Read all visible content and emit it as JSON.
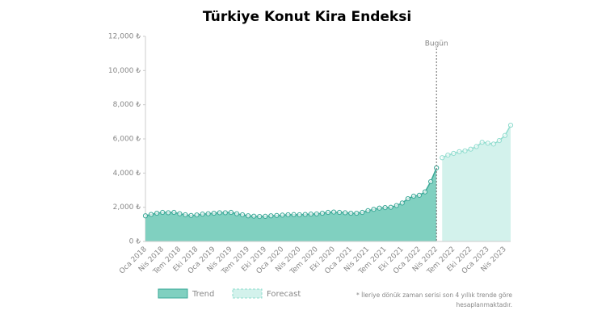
{
  "chart_data": {
    "type": "area",
    "title": "Türkiye Konut Kira Endeksi",
    "categories": [
      "Oca 2018",
      null,
      null,
      "Nis 2018",
      null,
      null,
      "Tem 2018",
      null,
      null,
      "Eki 2018",
      null,
      null,
      "Oca 2019",
      null,
      null,
      "Nis 2019",
      null,
      null,
      "Tem 2019",
      null,
      null,
      "Eki 2019",
      null,
      null,
      "Oca 2020",
      null,
      null,
      "Nis 2020",
      null,
      null,
      "Tem 2020",
      null,
      null,
      "Eki 2020",
      null,
      null,
      "Oca 2021",
      null,
      null,
      "Nis 2021",
      null,
      null,
      "Tem 2021",
      null,
      null,
      "Eki 2021",
      null,
      null,
      "Oca 2022",
      null,
      null,
      "Nis 2022",
      null,
      null,
      "Tem 2022",
      null,
      null,
      "Eki 2022",
      null,
      null,
      "Oca 2023",
      null,
      null,
      "Nis 2023",
      null
    ],
    "series": [
      {
        "name": "Trend",
        "color": "#3aa897",
        "fill": "#80d0c0",
        "values": [
          1500,
          1580,
          1650,
          1700,
          1680,
          1700,
          1620,
          1560,
          1520,
          1550,
          1600,
          1620,
          1650,
          1680,
          1680,
          1700,
          1620,
          1560,
          1500,
          1480,
          1460,
          1470,
          1500,
          1520,
          1540,
          1560,
          1570,
          1560,
          1580,
          1600,
          1610,
          1650,
          1700,
          1720,
          1700,
          1680,
          1650,
          1650,
          1700,
          1800,
          1880,
          1950,
          1980,
          2000,
          2100,
          2250,
          2500,
          2650,
          2700,
          2900,
          3500,
          4300,
          null,
          null,
          null,
          null,
          null,
          null,
          null,
          null,
          null,
          null,
          null,
          null,
          null
        ]
      },
      {
        "name": "Forecast",
        "color": "#8fdcce",
        "fill": "#d3f2ec",
        "values": [
          null,
          null,
          null,
          null,
          null,
          null,
          null,
          null,
          null,
          null,
          null,
          null,
          null,
          null,
          null,
          null,
          null,
          null,
          null,
          null,
          null,
          null,
          null,
          null,
          null,
          null,
          null,
          null,
          null,
          null,
          null,
          null,
          null,
          null,
          null,
          null,
          null,
          null,
          null,
          null,
          null,
          null,
          null,
          null,
          null,
          null,
          null,
          null,
          null,
          null,
          null,
          null,
          4900,
          5050,
          5150,
          5250,
          5300,
          5400,
          5550,
          5800,
          5750,
          5700,
          5900,
          6200,
          6800
        ]
      }
    ],
    "ylim": [
      0,
      12000
    ],
    "yticks": [
      {
        "value": 0,
        "label": "0 ₺"
      },
      {
        "value": 2000,
        "label": "2,000 ₺"
      },
      {
        "value": 4000,
        "label": "4,000 ₺"
      },
      {
        "value": 6000,
        "label": "6,000 ₺"
      },
      {
        "value": 8000,
        "label": "8,000 ₺"
      },
      {
        "value": 10000,
        "label": "10,000 ₺"
      },
      {
        "value": 12000,
        "label": "12,000 ₺"
      }
    ],
    "today_label": "Bugün",
    "footnote": [
      "* İleriye dönük zaman serisi son 4 yıllık trende göre",
      "hesaplanmaktadır."
    ]
  }
}
